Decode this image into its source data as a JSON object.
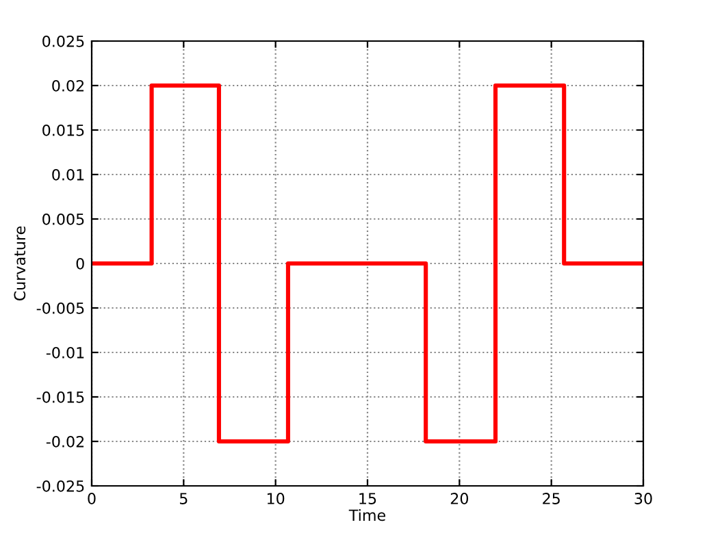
{
  "chart_data": {
    "type": "step",
    "xlabel": "Time",
    "ylabel": "Curvature",
    "x": [
      0,
      3.26,
      6.92,
      10.68,
      18.17,
      21.96,
      25.69,
      30
    ],
    "series": [
      {
        "color": "#ff0000",
        "values": [
          0,
          0.02,
          -0.02,
          0,
          -0.02,
          0.02,
          0,
          0
        ]
      }
    ],
    "xlim": [
      0,
      30
    ],
    "xticks": [
      0,
      5,
      10,
      15,
      20,
      25,
      30
    ],
    "ylim": [
      -0.025,
      0.025
    ],
    "yticks": [
      {
        "value": -0.025,
        "label": "-0.025"
      },
      {
        "value": -0.02,
        "label": "-0.02"
      },
      {
        "value": -0.015,
        "label": "-0.015"
      },
      {
        "value": -0.01,
        "label": "-0.01"
      },
      {
        "value": -0.005,
        "label": "-0.005"
      },
      0,
      0.005,
      0.01,
      0.015,
      0.02,
      0.025
    ],
    "grid": true,
    "line_style": "solid"
  }
}
